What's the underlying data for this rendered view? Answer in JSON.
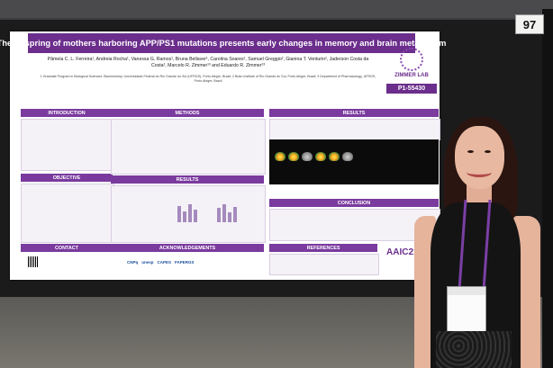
{
  "board_number": "97",
  "poster": {
    "title": "The offspring of mothers harboring APP/PS1 mutations presents early changes in memory and brain metabolism",
    "authors": "Pâmela C. L. Ferreira¹, Andreia Rocha¹, Vanessa G. Ramos¹, Bruna Bellaver¹, Carolina Soares¹, Samuel Greggio², Gianina T. Venturin², Jaderson Costa da Costa², Marcelo R. Zimmer¹³ and Eduardo R. Zimmer¹³",
    "affiliations": "1 Graduate Program in Biological Sciences: Biochemistry, Universidade Federal do Rio Grande do Sul (UFRGS), Porto Alegre, Brazil; 2 Brain Institute of Rio Grande do Sul, Porto Alegre, Brazil; 3 Department of Pharmacology, UFRGS, Porto Alegre, Brazil",
    "lab_name": "ZIMMER LAB",
    "poster_id": "P1-55430",
    "sections": {
      "introduction": "INTRODUCTION",
      "methods": "METHODS",
      "results_left": "RESULTS",
      "results_right": "RESULTS",
      "objective": "OBJECTIVE",
      "conclusion": "CONCLUSION",
      "contact": "CONTACT",
      "acknowledgements": "ACKNOWLEDGEMENTS",
      "references": "REFERENCES"
    },
    "sponsors": [
      "CNPq",
      "unesp",
      "CAPES",
      "FAPERGS"
    ],
    "conference": "AAIC21"
  }
}
